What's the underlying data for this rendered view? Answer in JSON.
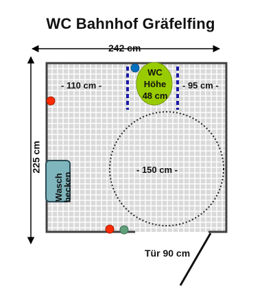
{
  "title": "WC Bahnhof Gräfelfing",
  "dimensions": {
    "width": "242 cm",
    "height": "225 cm",
    "left_clearance": "- 110 cm -",
    "right_clearance": "- 95 cm -",
    "turning_circle": "- 150 cm -",
    "door": "Tür 90 cm"
  },
  "toilet": {
    "line1": "WC",
    "line2": "Höhe",
    "line3": "48 cm"
  },
  "sink": {
    "line1": "Wasch",
    "line2": "becken"
  },
  "colors": {
    "tile": "#d9d9d9",
    "grout": "#ffffff",
    "wall": "#404040",
    "toilet_fill": "#99cc00",
    "grab_bar": "#1a1aa6",
    "sink_fill": "#7fb5bd",
    "red_dot": "#ff2a00",
    "blue_dot": "#0070c0",
    "green_dot": "#5fa07a"
  }
}
